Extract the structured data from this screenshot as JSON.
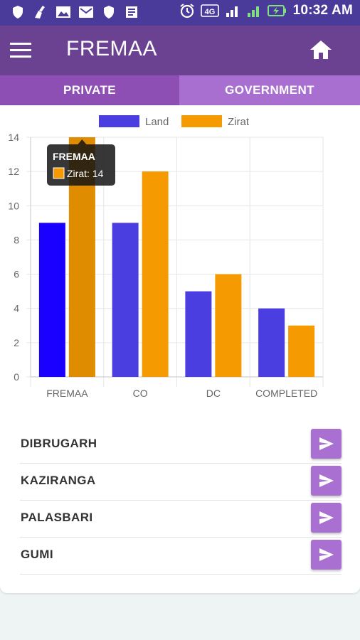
{
  "status_bar": {
    "time": "10:32 AM",
    "network": "4G"
  },
  "app_bar": {
    "title": "FREMAA"
  },
  "tabs": [
    {
      "label": "PRIVATE"
    },
    {
      "label": "GOVERNMENT"
    }
  ],
  "chart_data": {
    "type": "bar",
    "categories": [
      "FREMAA",
      "CO",
      "DC",
      "COMPLETED"
    ],
    "series": [
      {
        "name": "Land",
        "values": [
          9,
          9,
          5,
          4
        ],
        "color": "#4b3ee0",
        "highlight_color": "#1900ff"
      },
      {
        "name": "Zirat",
        "values": [
          14,
          12,
          6,
          3
        ],
        "color": "#f59a00",
        "highlight_color": "#e08c00"
      }
    ],
    "ylim": [
      0,
      14
    ],
    "yticks": [
      0,
      2,
      4,
      6,
      8,
      10,
      12,
      14
    ],
    "grid": true,
    "legend": "top",
    "tooltip": {
      "title": "FREMAA",
      "label": "Zirat: 14",
      "category_index": 0,
      "series_index": 1
    }
  },
  "list": {
    "items": [
      {
        "label": "DIBRUGARH"
      },
      {
        "label": "KAZIRANGA"
      },
      {
        "label": "PALASBARI"
      },
      {
        "label": "GUMI"
      }
    ]
  },
  "colors": {
    "status_bar": "#4a3a9a",
    "app_bar": "#6b4292",
    "tab_private": "#8d4fb4",
    "tab_government": "#a86fd0",
    "send_button": "#a970d1"
  }
}
